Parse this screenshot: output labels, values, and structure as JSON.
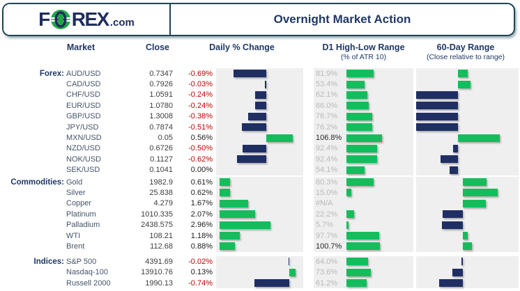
{
  "header": {
    "logo_f": "F",
    "logo_rex": "REX",
    "logo_tld": ".com",
    "title": "Overnight Market Action"
  },
  "columns": {
    "market": "Market",
    "close": "Close",
    "daily": "Daily % Change",
    "d1": "D1 High-Low Range",
    "d1_sub": "(% of ATR 10)",
    "r60": "60-Day Range",
    "r60_sub": "(Close relative to range)"
  },
  "colors": {
    "navy_text": "#1f3864",
    "bar_navy": "#1f2f63",
    "bar_green": "#14bd5c",
    "logo_green": "#25a646",
    "negative_red": "#c00000",
    "positive_black": "#1a1a1a",
    "chart_bg": "#efefef",
    "muted_gray": "#b9b9b9",
    "border_teal": "#1d4455"
  },
  "sections": [
    {
      "label": "Forex:",
      "daily_axis": 72,
      "daily_scale": 68,
      "r60_axis": 60,
      "rows": [
        {
          "market": "AUD/USD",
          "close": "0.7347",
          "daily_label": "-0.69%",
          "daily": -0.69,
          "d1_label": "81.9%",
          "d1": 81.9,
          "r60": 14
        },
        {
          "market": "CAD/USD",
          "close": "0.7926",
          "daily_label": "-0.03%",
          "daily": -0.03,
          "d1_label": "53.4%",
          "d1": 53.4,
          "r60": 18
        },
        {
          "market": "CHF/USD",
          "close": "1.0591",
          "daily_label": "-0.24%",
          "daily": -0.24,
          "d1_label": "62.1%",
          "d1": 62.1,
          "r60": -60
        },
        {
          "market": "EUR/USD",
          "close": "1.0780",
          "daily_label": "-0.24%",
          "daily": -0.24,
          "d1_label": "66.0%",
          "d1": 66.0,
          "r60": -60
        },
        {
          "market": "GBP/USD",
          "close": "1.3008",
          "daily_label": "-0.38%",
          "daily": -0.38,
          "d1_label": "76.7%",
          "d1": 76.7,
          "r60": -60
        },
        {
          "market": "JPY/USD",
          "close": "0.7874",
          "daily_label": "-0.51%",
          "daily": -0.51,
          "d1_label": "76.2%",
          "d1": 76.2,
          "r60": -60
        },
        {
          "market": "MXN/USD",
          "close": "0.05",
          "daily_label": "0.56%",
          "daily": 0.56,
          "d1_label": "106.8%",
          "d1": 106.8,
          "r60": 60
        },
        {
          "market": "NZD/USD",
          "close": "0.6726",
          "daily_label": "-0.50%",
          "daily": -0.5,
          "d1_label": "92.4%",
          "d1": 92.4,
          "r60": -7
        },
        {
          "market": "NOK/USD",
          "close": "0.1127",
          "daily_label": "-0.62%",
          "daily": -0.62,
          "d1_label": "92.4%",
          "d1": 92.4,
          "r60": -25
        },
        {
          "market": "SEK/USD",
          "close": "0.1041",
          "daily_label": "0.00%",
          "daily": 0,
          "d1_label": "54.1%",
          "d1": 54.1,
          "r60": -12
        }
      ]
    },
    {
      "label": "Commodities:",
      "daily_axis": 5,
      "daily_scale": 24.7,
      "r60_axis": 67,
      "rows": [
        {
          "market": "Gold",
          "close": "1982.9",
          "daily_label": "0.61%",
          "daily": 0.61,
          "d1_label": "80.3%",
          "d1": 80.3,
          "r60": 34
        },
        {
          "market": "Silver",
          "close": "25.838",
          "daily_label": "0.62%",
          "daily": 0.62,
          "d1_label": "15.0%",
          "d1": 15.0,
          "r60": 50
        },
        {
          "market": "Copper",
          "close": "4.279",
          "daily_label": "1.67%",
          "daily": 1.67,
          "d1_label": "#N/A",
          "d1": null,
          "r60": 33
        },
        {
          "market": "Platinum",
          "close": "1010.335",
          "daily_label": "2.07%",
          "daily": 2.07,
          "d1_label": "22.2%",
          "d1": 22.2,
          "r60": -29
        },
        {
          "market": "Palladium",
          "close": "2438.575",
          "daily_label": "2.96%",
          "daily": 2.96,
          "d1_label": "5.7%",
          "d1": 5.7,
          "r60": -30
        },
        {
          "market": "WTI",
          "close": "108.21",
          "daily_label": "1.18%",
          "daily": 1.18,
          "d1_label": "97.7%",
          "d1": 97.7,
          "r60": 7
        },
        {
          "market": "Brent",
          "close": "112.68",
          "daily_label": "0.88%",
          "daily": 0.88,
          "d1_label": "100.7%",
          "d1": 100.7,
          "r60": 13
        }
      ]
    },
    {
      "label": "Indices:",
      "daily_axis": 105,
      "daily_scale": 67.6,
      "r60_axis": 67,
      "rows": [
        {
          "market": "S&P 500",
          "close": "4391.69",
          "daily_label": "-0.02%",
          "daily": -0.02,
          "d1_label": "64.0%",
          "d1": 64.0,
          "r60": -2
        },
        {
          "market": "Nasdaq-100",
          "close": "13910.76",
          "daily_label": "0.13%",
          "daily": 0.13,
          "d1_label": "73.6%",
          "d1": 73.6,
          "r60": -15
        },
        {
          "market": "Russell 2000",
          "close": "1990.13",
          "daily_label": "-0.74%",
          "daily": -0.74,
          "d1_label": "61.2%",
          "d1": 61.2,
          "r60": -34
        }
      ]
    }
  ],
  "chart_data": [
    {
      "type": "bar",
      "title": "Daily % Change",
      "orientation": "horizontal",
      "categories": [
        "AUD/USD",
        "CAD/USD",
        "CHF/USD",
        "EUR/USD",
        "GBP/USD",
        "JPY/USD",
        "MXN/USD",
        "NZD/USD",
        "NOK/USD",
        "SEK/USD",
        "Gold",
        "Silver",
        "Copper",
        "Platinum",
        "Palladium",
        "WTI",
        "Brent",
        "S&P 500",
        "Nasdaq-100",
        "Russell 2000"
      ],
      "values": [
        -0.69,
        -0.03,
        -0.24,
        -0.24,
        -0.38,
        -0.51,
        0.56,
        -0.5,
        -0.62,
        0.0,
        0.61,
        0.62,
        1.67,
        2.07,
        2.96,
        1.18,
        0.88,
        -0.02,
        0.13,
        -0.74
      ],
      "positive_color": "#14bd5c",
      "negative_color": "#1f2f63",
      "grid": false,
      "note": "separate zero-axis and scale per section (Forex / Commodities / Indices)"
    },
    {
      "type": "bar",
      "title": "D1 High-Low Range (% of ATR 10)",
      "orientation": "horizontal",
      "categories": [
        "AUD/USD",
        "CAD/USD",
        "CHF/USD",
        "EUR/USD",
        "GBP/USD",
        "JPY/USD",
        "MXN/USD",
        "NZD/USD",
        "NOK/USD",
        "SEK/USD",
        "Gold",
        "Silver",
        "Copper",
        "Platinum",
        "Palladium",
        "WTI",
        "Brent",
        "S&P 500",
        "Nasdaq-100",
        "Russell 2000"
      ],
      "values": [
        81.9,
        53.4,
        62.1,
        66.0,
        76.7,
        76.2,
        106.8,
        92.4,
        92.4,
        54.1,
        80.3,
        15.0,
        null,
        22.2,
        5.7,
        97.7,
        100.7,
        64.0,
        73.6,
        61.2
      ],
      "bar_color": "#14bd5c",
      "xlim": [
        0,
        110
      ],
      "grid": false,
      "note": "Copper value shown as #N/A (no bar)"
    },
    {
      "type": "bar",
      "title": "60-Day Range (Close relative to range)",
      "orientation": "horizontal",
      "categories": [
        "AUD/USD",
        "CAD/USD",
        "CHF/USD",
        "EUR/USD",
        "GBP/USD",
        "JPY/USD",
        "MXN/USD",
        "NZD/USD",
        "NOK/USD",
        "SEK/USD",
        "Gold",
        "Silver",
        "Copper",
        "Platinum",
        "Palladium",
        "WTI",
        "Brent",
        "S&P 500",
        "Nasdaq-100",
        "Russell 2000"
      ],
      "values": [
        0.23,
        0.3,
        -1.0,
        -1.0,
        -1.0,
        -1.0,
        1.0,
        -0.12,
        -0.42,
        -0.2,
        0.51,
        0.75,
        0.49,
        -0.43,
        -0.45,
        0.1,
        0.19,
        -0.03,
        -0.22,
        -0.51
      ],
      "positive_color": "#14bd5c",
      "negative_color": "#1f2f63",
      "grid": false,
      "note": "values estimated from bar extents relative to mid-range axis (no numeric labels shown in image)"
    }
  ]
}
